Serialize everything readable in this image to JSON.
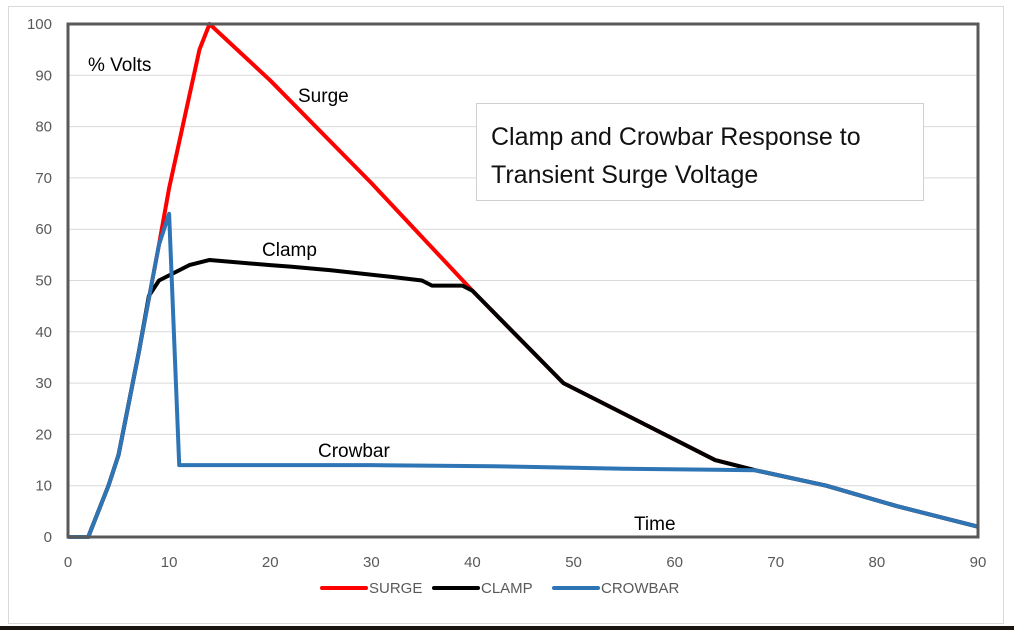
{
  "chart_data": {
    "type": "line",
    "title": "Clamp and Crowbar Response to Transient Surge Voltage",
    "ylabel": "% Volts",
    "xlabel": "Time",
    "xlim": [
      0,
      90
    ],
    "ylim": [
      0,
      100
    ],
    "xticks": [
      0,
      10,
      20,
      30,
      40,
      50,
      60,
      70,
      80,
      90
    ],
    "yticks": [
      0,
      10,
      20,
      30,
      40,
      50,
      60,
      70,
      80,
      90,
      100
    ],
    "grid": true,
    "legend_position": "bottom",
    "annotations": [
      "Surge",
      "Clamp",
      "Crowbar"
    ],
    "series": [
      {
        "name": "SURGE",
        "color": "#ff0000",
        "points": [
          [
            0,
            0
          ],
          [
            2,
            0
          ],
          [
            4,
            10
          ],
          [
            5,
            16
          ],
          [
            7,
            36
          ],
          [
            9,
            57
          ],
          [
            10,
            68
          ],
          [
            12,
            86
          ],
          [
            13,
            95
          ],
          [
            14,
            100
          ],
          [
            20,
            89
          ],
          [
            30,
            69
          ],
          [
            40,
            48
          ],
          [
            49,
            30
          ],
          [
            56,
            23
          ],
          [
            64,
            15
          ],
          [
            68,
            13
          ],
          [
            75,
            10
          ],
          [
            82,
            6
          ],
          [
            90,
            2
          ]
        ]
      },
      {
        "name": "CLAMP",
        "color": "#000000",
        "points": [
          [
            0,
            0
          ],
          [
            2,
            0
          ],
          [
            4,
            10
          ],
          [
            5,
            16
          ],
          [
            7,
            36
          ],
          [
            8,
            47
          ],
          [
            9,
            50
          ],
          [
            11,
            52
          ],
          [
            12,
            53
          ],
          [
            14,
            54
          ],
          [
            20,
            53
          ],
          [
            22,
            52.7
          ],
          [
            26,
            52
          ],
          [
            32,
            50.7
          ],
          [
            35,
            50
          ],
          [
            36,
            49
          ],
          [
            39,
            49
          ],
          [
            40,
            48
          ],
          [
            49,
            30
          ],
          [
            56,
            23
          ],
          [
            64,
            15
          ],
          [
            68,
            13
          ],
          [
            75,
            10
          ],
          [
            82,
            6
          ],
          [
            90,
            2
          ]
        ]
      },
      {
        "name": "CROWBAR",
        "color": "#2e75b6",
        "points": [
          [
            0,
            0
          ],
          [
            2,
            0
          ],
          [
            4,
            10
          ],
          [
            5,
            16
          ],
          [
            7,
            36
          ],
          [
            9,
            57
          ],
          [
            10,
            63
          ],
          [
            11,
            14
          ],
          [
            30,
            14
          ],
          [
            42,
            13.8
          ],
          [
            50,
            13.5
          ],
          [
            55,
            13.3
          ],
          [
            64,
            13.1
          ],
          [
            68,
            13
          ],
          [
            75,
            10
          ],
          [
            82,
            6
          ],
          [
            90,
            2
          ]
        ]
      }
    ]
  }
}
